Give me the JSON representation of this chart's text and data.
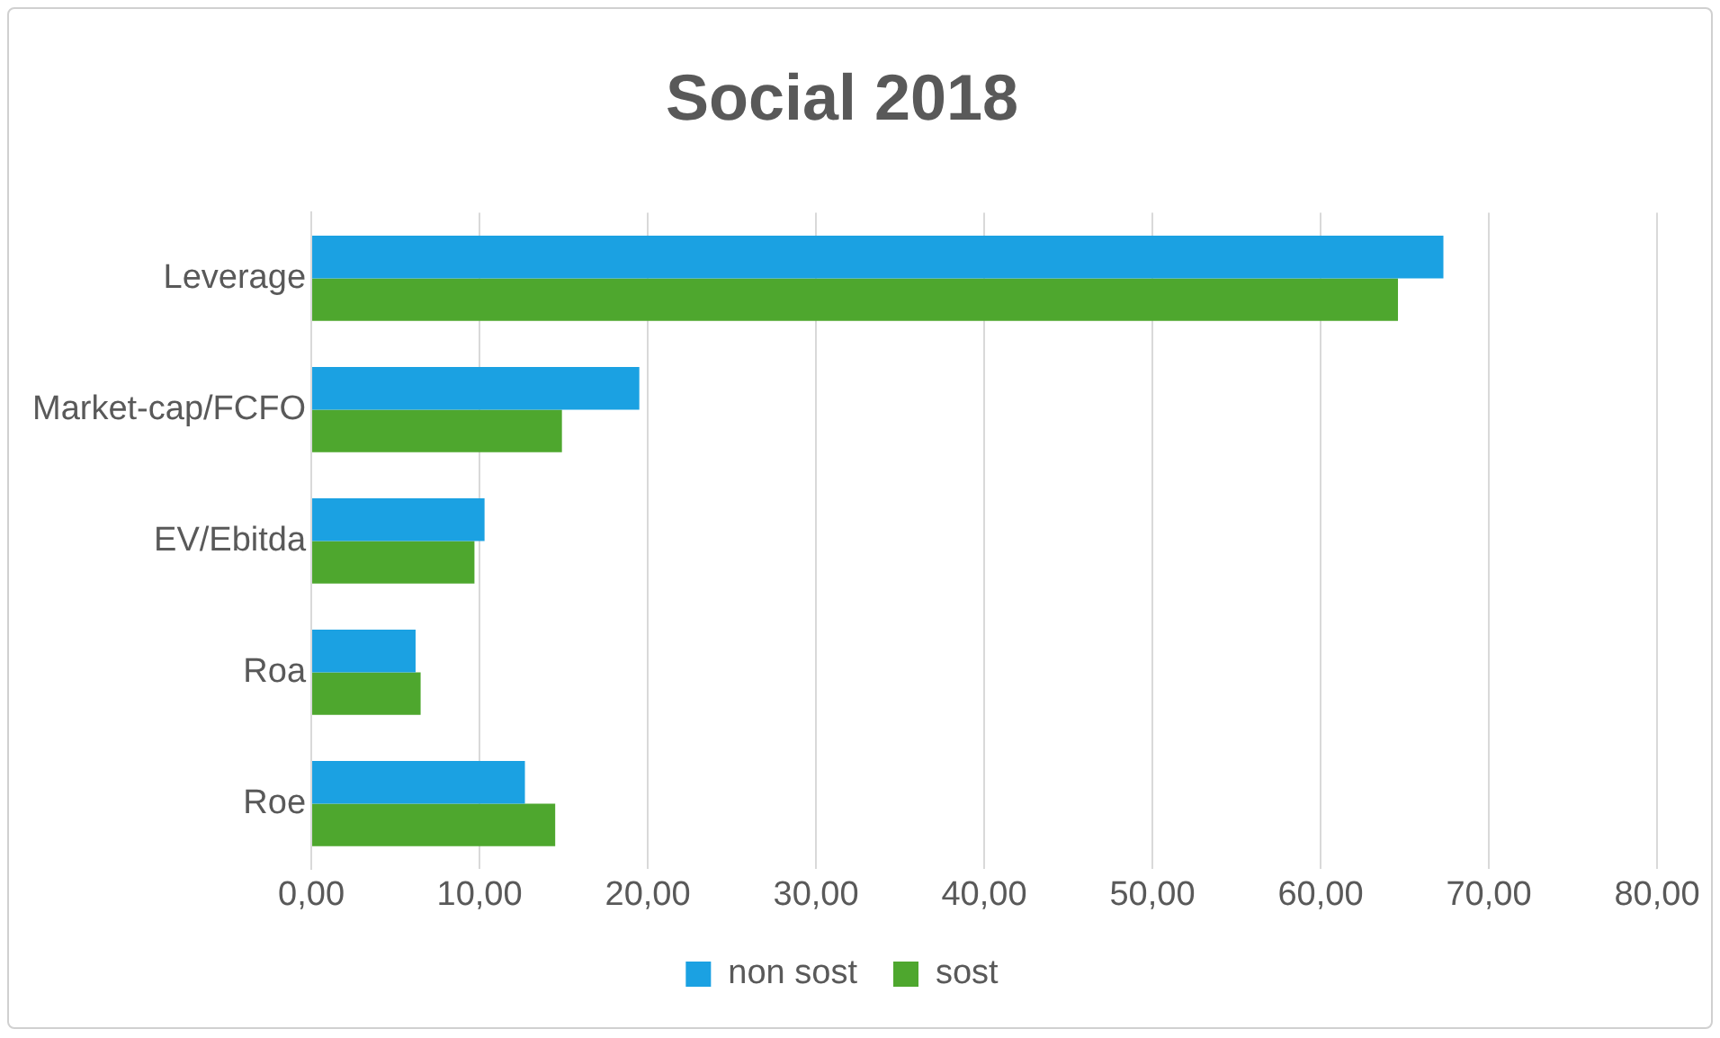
{
  "chart_data": {
    "type": "bar",
    "orientation": "horizontal",
    "title": "Social 2018",
    "categories": [
      "Leverage",
      "Market-cap/FCFO",
      "EV/Ebitda",
      "Roa",
      "Roe"
    ],
    "series": [
      {
        "name": "non sost",
        "color": "#1ba1e2",
        "values": [
          67.3,
          19.5,
          10.3,
          6.2,
          12.7
        ]
      },
      {
        "name": "sost",
        "color": "#4ea72e",
        "values": [
          64.6,
          14.9,
          9.7,
          6.5,
          14.5
        ]
      }
    ],
    "xlim": [
      0,
      80
    ],
    "xticks": [
      {
        "value": 0,
        "label": "0,00"
      },
      {
        "value": 10,
        "label": "10,00"
      },
      {
        "value": 20,
        "label": "20,00"
      },
      {
        "value": 30,
        "label": "30,00"
      },
      {
        "value": 40,
        "label": "40,00"
      },
      {
        "value": 50,
        "label": "50,00"
      },
      {
        "value": 60,
        "label": "60,00"
      },
      {
        "value": 70,
        "label": "70,00"
      },
      {
        "value": 80,
        "label": "80,00"
      }
    ],
    "grid": "x",
    "legend": "bottom"
  }
}
